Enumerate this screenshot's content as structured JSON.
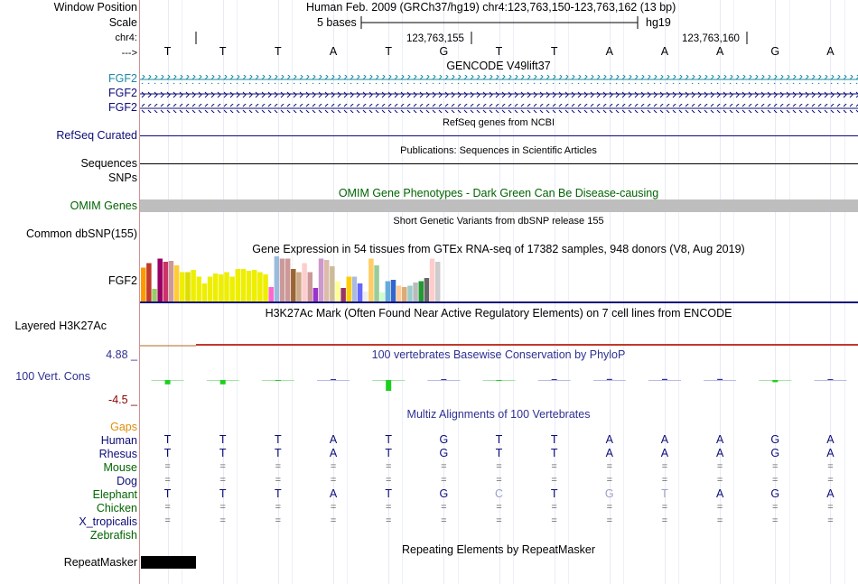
{
  "labels": {
    "window_position": "Window Position",
    "scale": "Scale",
    "chrom": "chr4:",
    "strand": "--->",
    "fgf2_a": "FGF2",
    "fgf2_b": "FGF2",
    "fgf2_c": "FGF2",
    "refseq": "RefSeq Curated",
    "sequences": "Sequences",
    "snps": "SNPs",
    "omim": "OMIM Genes",
    "dbsnp": "Common dbSNP(155)",
    "gtex_gene": "FGF2",
    "h3k27ac": "Layered H3K27Ac",
    "cons_max": "4.88 _",
    "cons_name": "100 Vert. Cons",
    "cons_min": "-4.5 _",
    "gaps": "Gaps",
    "human": "Human",
    "rhesus": "Rhesus",
    "mouse": "Mouse",
    "dog": "Dog",
    "elephant": "Elephant",
    "chicken": "Chicken",
    "xtrop": "X_tropicalis",
    "zebrafish": "Zebrafish",
    "repeatmasker": "RepeatMasker"
  },
  "header": {
    "position": "Human Feb. 2009 (GRCh37/hg19)   chr4:123,763,150-123,763,162 (13 bp)",
    "scale_text": "5 bases",
    "assembly": "hg19",
    "coord1": "123,763,155",
    "coord2": "123,763,160"
  },
  "bases": [
    "T",
    "T",
    "T",
    "A",
    "T",
    "G",
    "T",
    "T",
    "A",
    "A",
    "A",
    "G",
    "A"
  ],
  "tracks": {
    "gencode": "GENCODE V49lift37",
    "refseq": "RefSeq genes from NCBI",
    "publications": "Publications: Sequences in Scientific Articles",
    "omim": "OMIM Gene Phenotypes - Dark Green Can Be Disease-causing",
    "dbsnp": "Short Genetic Variants from dbSNP release 155",
    "gtex": "Gene Expression in 54 tissues from GTEx RNA-seq of 17382 samples, 948 donors (V8, Aug 2019)",
    "h3k27ac": "H3K27Ac Mark (Often Found Near Active Regulatory Elements) on 7 cell lines from ENCODE",
    "phylop": "100 vertebrates Basewise Conservation by PhyloP",
    "multiz": "Multiz Alignments of 100 Vertebrates",
    "rmsk": "Repeating Elements by RepeatMasker"
  },
  "alignment": {
    "human": [
      "T",
      "T",
      "T",
      "A",
      "T",
      "G",
      "T",
      "T",
      "A",
      "A",
      "A",
      "G",
      "A"
    ],
    "rhesus": [
      "T",
      "T",
      "T",
      "A",
      "T",
      "G",
      "T",
      "T",
      "A",
      "A",
      "A",
      "G",
      "A"
    ],
    "mouse": [
      "=",
      "=",
      "=",
      "=",
      "=",
      "=",
      "=",
      "=",
      "=",
      "=",
      "=",
      "=",
      "="
    ],
    "dog": [
      "=",
      "=",
      "=",
      "=",
      "=",
      "=",
      "=",
      "=",
      "=",
      "=",
      "=",
      "=",
      "="
    ],
    "elephant": [
      "T",
      "T",
      "T",
      "A",
      "T",
      "G",
      "C",
      "T",
      "G",
      "T",
      "A",
      "G",
      "A"
    ],
    "chicken": [
      "=",
      "=",
      "=",
      "=",
      "=",
      "=",
      "=",
      "=",
      "=",
      "=",
      "=",
      "=",
      "="
    ],
    "xtrop": [
      "=",
      "=",
      "=",
      "=",
      "=",
      "=",
      "=",
      "=",
      "=",
      "=",
      "=",
      "=",
      "="
    ]
  },
  "elephant_mismatch": [
    false,
    false,
    false,
    false,
    false,
    false,
    true,
    false,
    true,
    true,
    false,
    false,
    false
  ],
  "gtex_values": [
    0.75,
    0.85,
    0.28,
    0.95,
    0.88,
    0.9,
    0.8,
    0.65,
    0.65,
    0.7,
    0.55,
    0.4,
    0.55,
    0.62,
    0.6,
    0.65,
    0.55,
    0.72,
    0.72,
    0.68,
    0.7,
    0.65,
    0.6,
    0.32,
    1.0,
    0.95,
    0.95,
    0.72,
    0.65,
    0.85,
    0.65,
    0.3,
    0.95,
    0.92,
    0.78,
    0.45,
    0.3,
    0.55,
    0.55,
    0.4,
    0.22,
    0.95,
    0.8,
    0.2,
    0.45,
    0.48,
    0.35,
    0.32,
    0.35,
    0.42,
    0.45,
    0.52,
    0.95,
    0.88
  ],
  "gtex_colors": [
    "#ff9900",
    "#c0392b",
    "#99cc66",
    "#990066",
    "#cc3366",
    "#cc9999",
    "#ffcc33",
    "#eeee00",
    "#dddd00",
    "#eeee00",
    "#eeee00",
    "#eeee00",
    "#eeee00",
    "#eeee00",
    "#eeee00",
    "#eeee00",
    "#eeee00",
    "#eeee00",
    "#eeee00",
    "#eeee00",
    "#eeee00",
    "#eeee00",
    "#eeee00",
    "#ff66cc",
    "#99bbdd",
    "#cc9999",
    "#cc9999",
    "#996633",
    "#ccaa88",
    "#ffcccc",
    "#cc9999",
    "#9933cc",
    "#cc99cc",
    "#ddbbaa",
    "#ccbb99",
    "#ffff99",
    "#993366",
    "#ffcc00",
    "#aabbdd",
    "#6666ff",
    "#eeeeee",
    "#ffcc66",
    "#99cc99",
    "#ccffcc",
    "#66aadd",
    "#3366cc",
    "#ffcc99",
    "#ddaa77",
    "#99cccc",
    "#bbbbbb",
    "#229933",
    "#666666",
    "#ffcccc",
    "#cccccc"
  ],
  "phylop_values": [
    -1.2,
    -1.2,
    -0.2,
    0.1,
    -3.0,
    0.1,
    -0.2,
    0.1,
    0.3,
    0.3,
    0.3,
    -0.6,
    0.2
  ]
}
